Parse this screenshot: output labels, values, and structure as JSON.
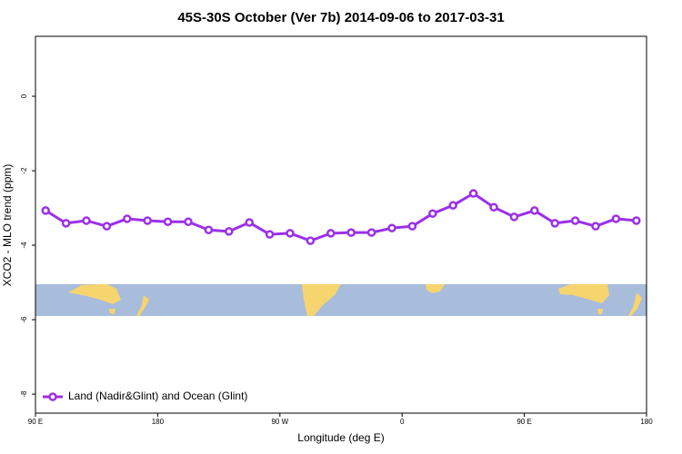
{
  "chart_data": {
    "type": "line",
    "title": "45S-30S October (Ver 7b)   2014-09-06 to 2017-03-31",
    "xlabel": "Longitude (deg E)",
    "ylabel": "XCO2 - MLO trend (ppm)",
    "x": [
      97.5,
      112.5,
      127.5,
      142.5,
      157.5,
      172.5,
      187.5,
      202.5,
      217.5,
      232.5,
      247.5,
      262.5,
      277.5,
      292.5,
      307.5,
      322.5,
      337.5,
      352.5,
      367.5,
      382.5,
      397.5,
      412.5,
      427.5,
      442.5,
      457.5,
      472.5,
      487.5,
      502.5,
      517.5,
      532.5
    ],
    "series": [
      {
        "name": "Land (Nadir&Glint) and Ocean (Glint)",
        "color": "#9b30e8",
        "values": [
          -3.07,
          -3.41,
          -3.34,
          -3.49,
          -3.29,
          -3.34,
          -3.37,
          -3.37,
          -3.59,
          -3.63,
          -3.39,
          -3.71,
          -3.68,
          -3.88,
          -3.68,
          -3.66,
          -3.66,
          -3.54,
          -3.49,
          -3.15,
          -2.93,
          -2.61,
          -2.98,
          -3.24,
          -3.07,
          -3.41,
          -3.34,
          -3.49,
          -3.29,
          -3.34
        ]
      }
    ],
    "xlim": [
      90,
      540
    ],
    "xticks": [
      {
        "value": 90,
        "label": "90 E"
      },
      180,
      {
        "value": 270,
        "label": "90 W"
      },
      {
        "value": 360,
        "label": "0"
      },
      {
        "value": 450,
        "label": "90 E"
      },
      {
        "value": 540,
        "label": "180"
      }
    ],
    "ylim": [
      -8.51,
      1.61
    ],
    "yticks": [
      0,
      -2,
      -4,
      -6,
      -8
    ],
    "legend": "bottom-left"
  }
}
